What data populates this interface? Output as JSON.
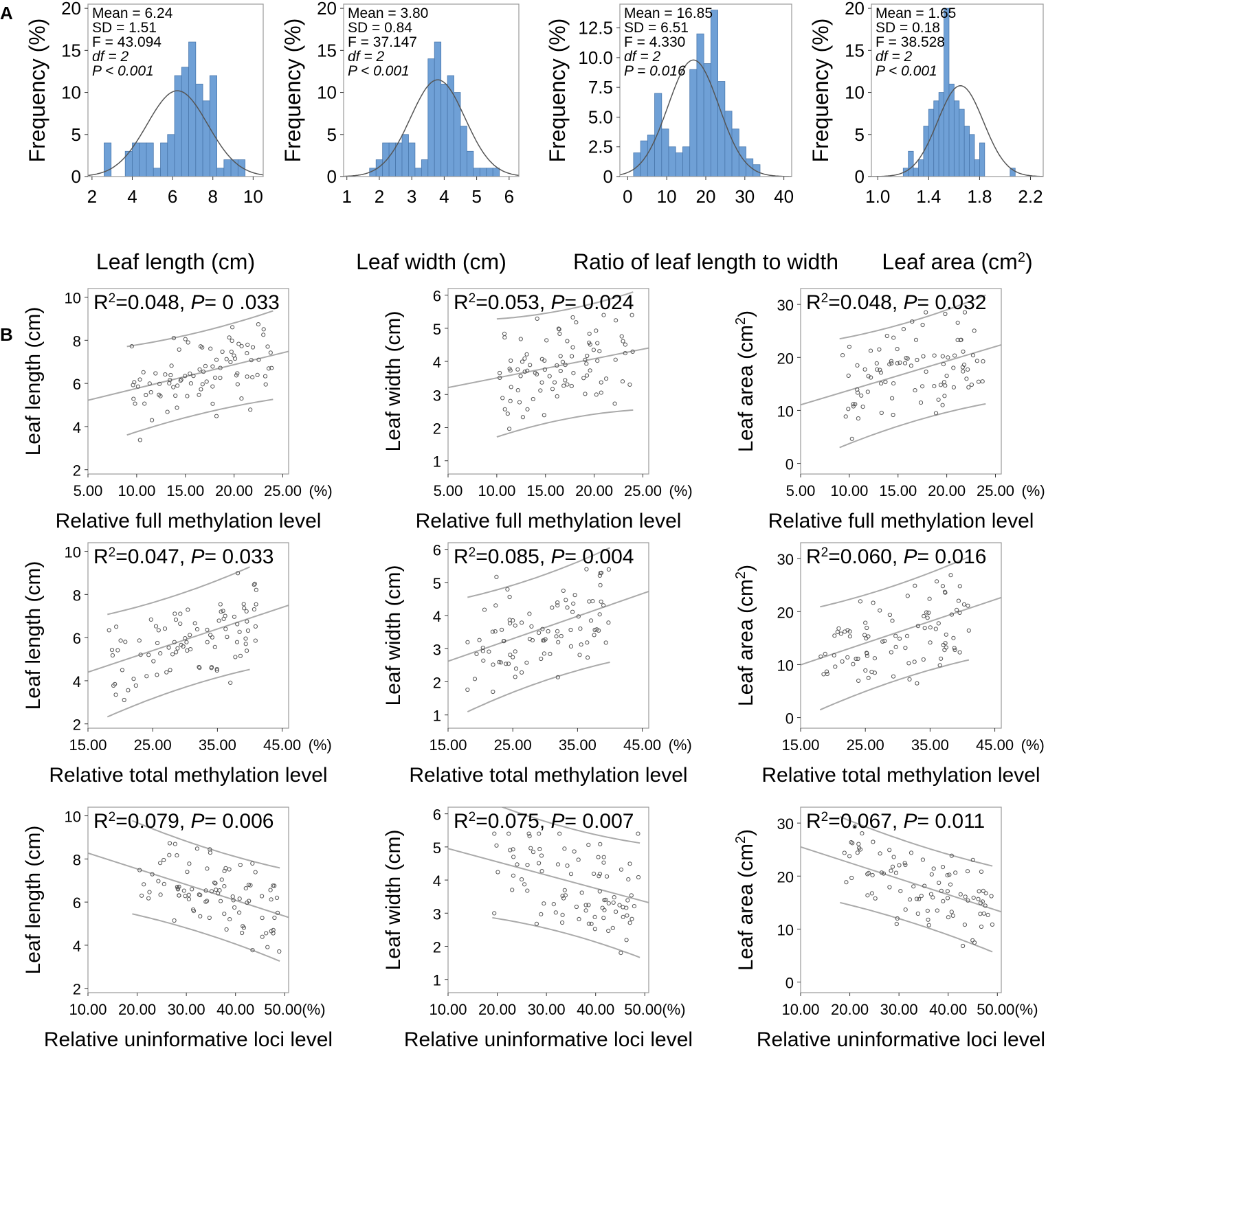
{
  "figure": {
    "panel_labels": [
      "A",
      "B"
    ]
  },
  "colors": {
    "bar_fill": "#6fa0d6",
    "bar_stroke": "#4a78ad",
    "curve": "#555555",
    "frame": "#999999",
    "fit_line": "#aaaaaa",
    "point": "#555555"
  },
  "chart_data": [
    {
      "id": "hist-leaf-length",
      "type": "bar",
      "panel": "A",
      "ylabel": "Frequency (%)",
      "xlabel": "Leaf length   (cm)",
      "xlim": [
        1.8,
        10.5
      ],
      "ylim": [
        0,
        20.5
      ],
      "xticks": [
        2,
        4,
        6,
        8,
        10
      ],
      "yticks": [
        0,
        5,
        10,
        15,
        20
      ],
      "bin_start": 2.6,
      "bin_width": 0.35,
      "values": [
        4,
        0,
        0,
        3,
        4,
        4,
        4,
        1,
        4,
        5,
        12,
        13,
        16,
        11,
        9,
        12,
        1,
        2,
        2,
        2
      ],
      "normal_fit": {
        "mean": 6.24,
        "sd": 1.51,
        "peak": 10.2
      },
      "stats": [
        "Mean = 6.24",
        "SD = 1.51",
        "F = 43.094",
        "df = 2",
        "P < 0.001"
      ]
    },
    {
      "id": "hist-leaf-width",
      "type": "bar",
      "panel": "A",
      "ylabel": "Frequency (%)",
      "xlabel": "Leaf width (cm)",
      "xlim": [
        0.9,
        6.3
      ],
      "ylim": [
        0,
        20.5
      ],
      "xticks": [
        1,
        2,
        3,
        4,
        5,
        6
      ],
      "yticks": [
        0,
        5,
        10,
        15,
        20
      ],
      "bin_start": 1.5,
      "bin_width": 0.2,
      "values": [
        0,
        1,
        2,
        4,
        4,
        4,
        5,
        4,
        1,
        2,
        14,
        16,
        11,
        12,
        10,
        6,
        3,
        1,
        1,
        1,
        1
      ],
      "normal_fit": {
        "mean": 3.8,
        "sd": 0.84,
        "peak": 11.5
      },
      "stats": [
        "Mean = 3.80",
        "SD = 0.84",
        "F = 37.147",
        "df = 2",
        "P < 0.001"
      ]
    },
    {
      "id": "hist-length-width-ratio",
      "type": "bar",
      "panel": "A",
      "ylabel": "Frequency (%)",
      "xlabel": "Ratio of leaf length to width",
      "xlim": [
        -2,
        42
      ],
      "ylim": [
        0,
        14.5
      ],
      "xticks": [
        0,
        10,
        20,
        30,
        40
      ],
      "yticks": [
        0,
        2.5,
        5.0,
        7.5,
        10.0,
        12.5
      ],
      "ytick_labels": [
        "0",
        "2.5",
        "5.0",
        "7.5",
        "10.0",
        "12.5"
      ],
      "bin_start": 1.5,
      "bin_width": 1.8,
      "values": [
        2,
        3,
        3.5,
        7,
        4,
        2.5,
        2,
        2.5,
        9,
        12,
        9.5,
        14,
        8,
        5.5,
        4,
        2.5,
        1.5,
        1
      ],
      "normal_fit": {
        "mean": 16.85,
        "sd": 6.51,
        "peak": 9.8
      },
      "stats": [
        "Mean = 16.85",
        "SD = 6.51",
        "F = 4.330",
        "df = 2",
        "P = 0.016"
      ]
    },
    {
      "id": "hist-leaf-area",
      "type": "bar",
      "panel": "A",
      "ylabel": "Frequency (%)",
      "xlabel": "Leaf area (cm",
      "xlabel_sup": "2",
      "xlabel_end": ")",
      "xlim": [
        0.95,
        2.3
      ],
      "ylim": [
        0,
        20.5
      ],
      "xticks": [
        1.0,
        1.4,
        1.8,
        2.2
      ],
      "xtick_labels": [
        "1.0",
        "1.4",
        "1.8",
        "2.2"
      ],
      "yticks": [
        0,
        5,
        10,
        15,
        20
      ],
      "bin_start": 1.2,
      "bin_width": 0.04,
      "values": [
        1,
        3,
        1,
        2,
        6,
        8,
        9,
        10,
        20,
        11,
        9,
        8,
        6,
        5,
        2,
        4,
        0,
        0,
        0,
        0,
        0,
        1
      ],
      "normal_fit": {
        "mean": 1.65,
        "sd": 0.18,
        "peak": 10.8
      },
      "stats": [
        "Mean = 1.65",
        "SD = 0.18",
        "F = 38.528",
        "df = 2",
        "P < 0.001"
      ]
    },
    {
      "id": "scatter-full-length",
      "type": "scatter",
      "panel": "B",
      "ylabel": "Leaf  length (cm)",
      "xlabel": "Relative full methylation level",
      "xlim": [
        5,
        25.6
      ],
      "ylim": [
        1.8,
        10.4
      ],
      "xticks": [
        5,
        10,
        15,
        20,
        25
      ],
      "xtick_labels": [
        "5.00",
        "10.00",
        "15.00",
        "20.00",
        "25.00"
      ],
      "yticks": [
        2,
        4,
        6,
        8,
        10
      ],
      "x_unit": "(%)",
      "stat": {
        "r2": "0.048",
        "p": "0 .033"
      },
      "fit": {
        "a": 4.67,
        "b": 0.11,
        "x_start": 5,
        "x_end": 25.6
      },
      "band": {
        "half": 1.9,
        "lo": 9,
        "hi": 24
      },
      "n_points": 90,
      "x_range": [
        9,
        24
      ],
      "y_range": [
        2.5,
        9.1
      ],
      "seed": 11
    },
    {
      "id": "scatter-full-width",
      "type": "scatter",
      "panel": "B",
      "ylabel": "Leaf width (cm)",
      "xlabel": "Relative full methylation level",
      "xlim": [
        5,
        25.6
      ],
      "ylim": [
        0.6,
        6.2
      ],
      "xticks": [
        5,
        10,
        15,
        20,
        25
      ],
      "xtick_labels": [
        "5.00",
        "10.00",
        "15.00",
        "20.00",
        "25.00"
      ],
      "yticks": [
        1,
        2,
        3,
        4,
        5,
        6
      ],
      "x_unit": "(%)",
      "stat": {
        "r2": "0.053",
        "p": "0.024"
      },
      "fit": {
        "a": 2.92,
        "b": 0.058,
        "x_start": 5,
        "x_end": 25.6
      },
      "band": {
        "half": 1.65,
        "lo": 10,
        "hi": 24
      },
      "n_points": 90,
      "x_range": [
        10,
        24
      ],
      "y_range": [
        1.8,
        5.4
      ],
      "seed": 23
    },
    {
      "id": "scatter-full-area",
      "type": "scatter",
      "panel": "B",
      "ylabel": "Leaf area (cm",
      "ylabel_sup": "2",
      "ylabel_end": ")",
      "xlabel": "Relative full methylation level",
      "xlim": [
        5,
        25.6
      ],
      "ylim": [
        -2,
        33
      ],
      "xticks": [
        5,
        10,
        15,
        20,
        25
      ],
      "xtick_labels": [
        "5.00",
        "10.00",
        "15.00",
        "20.00",
        "25.00"
      ],
      "yticks": [
        0,
        10,
        20,
        30
      ],
      "x_unit": "(%)",
      "stat": {
        "r2": "0.048",
        "p": "0.032"
      },
      "fit": {
        "a": 8.3,
        "b": 0.55,
        "x_start": 5,
        "x_end": 25.6
      },
      "band": {
        "half": 9.5,
        "lo": 9,
        "hi": 24
      },
      "n_points": 90,
      "x_range": [
        9,
        24
      ],
      "y_range": [
        1.5,
        28.5
      ],
      "seed": 37
    },
    {
      "id": "scatter-total-length",
      "type": "scatter",
      "panel": "B",
      "ylabel": "Leaf  length (cm)",
      "xlabel": "Relative total methylation level",
      "xlim": [
        15,
        46
      ],
      "ylim": [
        1.8,
        10.4
      ],
      "xticks": [
        15,
        25,
        35,
        45
      ],
      "xtick_labels": [
        "15.00",
        "25.00",
        "35.00",
        "45.00"
      ],
      "yticks": [
        2,
        4,
        6,
        8,
        10
      ],
      "x_unit": "(%)",
      "stat": {
        "r2": "0.047",
        "p": "0.033"
      },
      "fit": {
        "a": 2.9,
        "b": 0.1,
        "x_start": 15,
        "x_end": 46
      },
      "band": {
        "half": 2.2,
        "lo": 18,
        "hi": 40
      },
      "n_points": 90,
      "x_range": [
        18,
        41
      ],
      "y_range": [
        2.5,
        9.1
      ],
      "seed": 51
    },
    {
      "id": "scatter-total-width",
      "type": "scatter",
      "panel": "B",
      "ylabel": "Leaf width (cm)",
      "xlabel": "Relative total methylation level",
      "xlim": [
        15,
        46
      ],
      "ylim": [
        0.6,
        6.2
      ],
      "xticks": [
        15,
        25,
        35,
        45
      ],
      "xtick_labels": [
        "15.00",
        "25.00",
        "35.00",
        "45.00"
      ],
      "yticks": [
        1,
        2,
        3,
        4,
        5,
        6
      ],
      "x_unit": "(%)",
      "stat": {
        "r2": "0.085",
        "p": "0.004"
      },
      "fit": {
        "a": 1.6,
        "b": 0.068,
        "x_start": 15,
        "x_end": 46
      },
      "band": {
        "half": 1.6,
        "lo": 18,
        "hi": 40
      },
      "n_points": 90,
      "x_range": [
        18,
        40
      ],
      "y_range": [
        1.7,
        5.4
      ],
      "seed": 67
    },
    {
      "id": "scatter-total-area",
      "type": "scatter",
      "panel": "B",
      "ylabel": "Leaf area (cm",
      "ylabel_sup": "2",
      "ylabel_end": ")",
      "xlabel": "Relative total methylation level",
      "xlim": [
        15,
        46
      ],
      "ylim": [
        -2,
        33
      ],
      "xticks": [
        15,
        25,
        35,
        45
      ],
      "xtick_labels": [
        "15.00",
        "25.00",
        "35.00",
        "45.00"
      ],
      "yticks": [
        0,
        10,
        20,
        30
      ],
      "x_unit": "(%)",
      "stat": {
        "r2": "0.060",
        "p": "0.016"
      },
      "fit": {
        "a": 3.8,
        "b": 0.41,
        "x_start": 15,
        "x_end": 46
      },
      "band": {
        "half": 9.0,
        "lo": 18,
        "hi": 41
      },
      "n_points": 90,
      "x_range": [
        18,
        41
      ],
      "y_range": [
        3,
        29
      ],
      "seed": 79
    },
    {
      "id": "scatter-uninf-length",
      "type": "scatter",
      "panel": "B",
      "ylabel": "Leaf  length (cm)",
      "xlabel": "Relative uninformative loci level",
      "xlim": [
        10,
        50.8
      ],
      "ylim": [
        1.8,
        10.4
      ],
      "xticks": [
        10,
        20,
        30,
        40,
        50
      ],
      "xtick_labels": [
        "10.00",
        "20.00",
        "30.00",
        "40.00",
        "50.00(%)"
      ],
      "yticks": [
        2,
        4,
        6,
        8,
        10
      ],
      "x_unit": "",
      "stat": {
        "r2": "0.079",
        "p": "0.006"
      },
      "fit": {
        "a": 9.0,
        "b": -0.073,
        "x_start": 10,
        "x_end": 50.8
      },
      "band": {
        "half": 2.0,
        "lo": 19,
        "hi": 49
      },
      "n_points": 90,
      "x_range": [
        19,
        49
      ],
      "y_range": [
        2.5,
        9.1
      ],
      "seed": 93
    },
    {
      "id": "scatter-uninf-width",
      "type": "scatter",
      "panel": "B",
      "ylabel": "Leaf width (cm)",
      "xlabel": "Relative uninformative loci level",
      "xlim": [
        10,
        50.8
      ],
      "ylim": [
        0.6,
        6.2
      ],
      "xticks": [
        10,
        20,
        30,
        40,
        50
      ],
      "xtick_labels": [
        "10.00",
        "20.00",
        "30.00",
        "40.00",
        "50.00(%)"
      ],
      "yticks": [
        1,
        2,
        3,
        4,
        5,
        6
      ],
      "x_unit": "",
      "stat": {
        "r2": "0.075",
        "p": "0.007"
      },
      "fit": {
        "a": 5.35,
        "b": -0.04,
        "x_start": 10,
        "x_end": 50.8
      },
      "band": {
        "half": 1.6,
        "lo": 19,
        "hi": 49
      },
      "n_points": 90,
      "x_range": [
        19,
        49
      ],
      "y_range": [
        1.8,
        5.4
      ],
      "seed": 107
    },
    {
      "id": "scatter-uninf-area",
      "type": "scatter",
      "panel": "B",
      "ylabel": "Leaf area (cm",
      "ylabel_sup": "2",
      "ylabel_end": ")",
      "xlabel": "Relative uninformative  loci  level",
      "xlim": [
        10,
        50.8
      ],
      "ylim": [
        -2,
        33
      ],
      "xticks": [
        10,
        20,
        30,
        40,
        50
      ],
      "xtick_labels": [
        "10.00",
        "20.00",
        "30.00",
        "40.00",
        "50.00(%)"
      ],
      "yticks": [
        0,
        10,
        20,
        30
      ],
      "x_unit": "",
      "stat": {
        "r2": "0.067",
        "p": "0.011"
      },
      "fit": {
        "a": 28.5,
        "b": -0.3,
        "x_start": 10,
        "x_end": 50.8
      },
      "band": {
        "half": 7.5,
        "lo": 18,
        "hi": 49
      },
      "n_points": 90,
      "x_range": [
        18,
        49
      ],
      "y_range": [
        3,
        30
      ],
      "seed": 131
    }
  ]
}
